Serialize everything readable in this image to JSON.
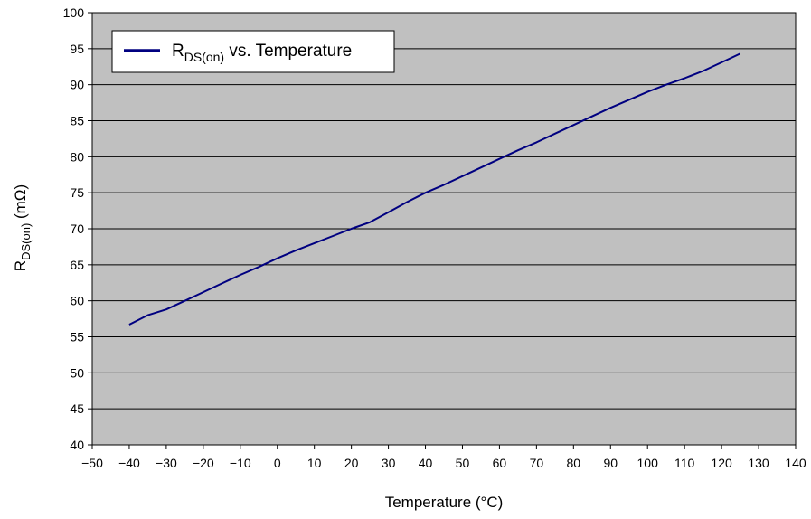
{
  "chart_data": {
    "type": "line",
    "title": "",
    "xlabel": "Temperature (°C)",
    "ylabel": {
      "main": "R",
      "sub": "DS(on)",
      "rest": " (mΩ)"
    },
    "xlim": [
      -50,
      140
    ],
    "ylim": [
      40,
      100
    ],
    "x_ticks": [
      "−50",
      "−40",
      "−30",
      "−20",
      "−10",
      "0",
      "10",
      "20",
      "30",
      "40",
      "50",
      "60",
      "70",
      "80",
      "90",
      "100",
      "110",
      "120",
      "130",
      "140"
    ],
    "x_tick_values": [
      -50,
      -40,
      -30,
      -20,
      -10,
      0,
      10,
      20,
      30,
      40,
      50,
      60,
      70,
      80,
      90,
      100,
      110,
      120,
      130,
      140
    ],
    "y_ticks": [
      "40",
      "45",
      "50",
      "55",
      "60",
      "65",
      "70",
      "75",
      "80",
      "85",
      "90",
      "95",
      "100"
    ],
    "y_tick_values": [
      40,
      45,
      50,
      55,
      60,
      65,
      70,
      75,
      80,
      85,
      90,
      95,
      100
    ],
    "grid": "horizontal",
    "plot_background": "#c0c0c0",
    "legend": {
      "position": "top-left",
      "main": "R",
      "sub": "DS(on)",
      "rest": " vs. Temperature"
    },
    "series": [
      {
        "color": "#000080",
        "x": [
          -40,
          -35,
          -30,
          -25,
          -20,
          -15,
          -10,
          -5,
          0,
          5,
          10,
          15,
          20,
          25,
          30,
          35,
          40,
          45,
          50,
          55,
          60,
          65,
          70,
          75,
          80,
          85,
          90,
          95,
          100,
          105,
          110,
          115,
          120,
          125
        ],
        "y": [
          56.7,
          58.0,
          58.8,
          60.0,
          61.2,
          62.4,
          63.6,
          64.7,
          65.9,
          67.0,
          68.0,
          69.0,
          70.0,
          70.9,
          72.3,
          73.7,
          75.0,
          76.1,
          77.3,
          78.5,
          79.7,
          80.9,
          82.0,
          83.2,
          84.4,
          85.6,
          86.8,
          87.9,
          89.0,
          90.0,
          90.9,
          91.9,
          93.1,
          94.3
        ]
      }
    ]
  }
}
